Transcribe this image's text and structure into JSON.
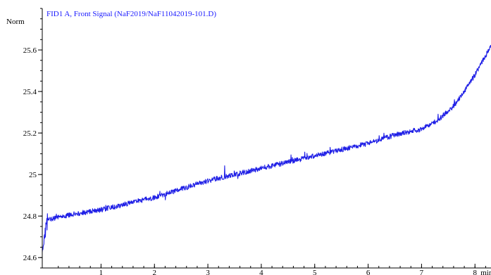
{
  "chart_data": {
    "type": "line",
    "title": "FID1 A, Front Signal (NaF2019/NaF11042019-101.D)",
    "ylabel": "Norm",
    "xlabel": "min",
    "xlim": [
      -0.1,
      8.3
    ],
    "ylim": [
      24.55,
      25.8
    ],
    "x_ticks": [
      1,
      2,
      3,
      4,
      5,
      6,
      7,
      8
    ],
    "x_tick_labels": [
      "1",
      "2",
      "3",
      "4",
      "5",
      "6",
      "7",
      "8"
    ],
    "x_unit_label": "min",
    "y_ticks": [
      24.6,
      24.8,
      25,
      25.2,
      25.4,
      25.6
    ],
    "y_tick_labels": [
      "24.6",
      "24.8",
      "25",
      "25.2",
      "25.4",
      "25.6"
    ],
    "grid": false,
    "legend": "none",
    "colors": {
      "series": "#1f1fe6",
      "title": "#1a1aff",
      "axis": "#000000"
    },
    "series": [
      {
        "name": "FID1 A, Front Signal",
        "x": [
          -0.1,
          0.0,
          0.5,
          1.0,
          1.5,
          2.0,
          2.5,
          3.0,
          3.5,
          4.0,
          4.5,
          5.0,
          5.5,
          6.0,
          6.5,
          7.0,
          7.3,
          7.6,
          7.8,
          8.0,
          8.15,
          8.3
        ],
        "y": [
          24.66,
          24.78,
          24.81,
          24.83,
          24.86,
          24.89,
          24.93,
          24.97,
          25.0,
          25.03,
          25.06,
          25.09,
          25.12,
          25.15,
          25.19,
          25.22,
          25.26,
          25.33,
          25.4,
          25.48,
          25.55,
          25.62
        ]
      }
    ]
  }
}
